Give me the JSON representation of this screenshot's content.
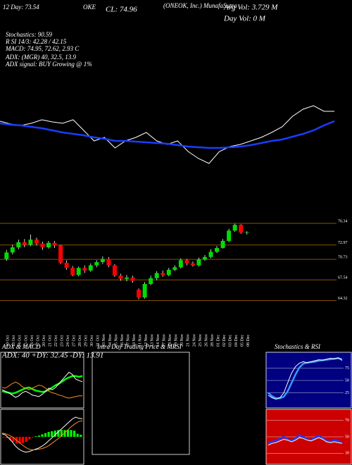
{
  "header": {
    "company": "(ONEOK, Inc.) MunafaSutra",
    "symbol": "OKE",
    "close": "CL: 74.96",
    "avg_vol": "Avg Vol: 3.729 M",
    "day_vol": "Day Vol: 0 M",
    "day_ema": "12 Day: 73.54",
    "stochastics": "Stochastics: 90.59",
    "rsi": "R SI 14/3: 42.28 / 42.15",
    "macd": "MACD: 74.95, 72.62, 2.93 C",
    "adx": "ADX: (MGR) 40, 32.5, 13.9",
    "adx_signal": "ADX signal: BUY Growing @ 1%"
  },
  "panels": {
    "adx_title": "ADX & MACD",
    "adx_values": "ADX: 40 +DY: 32.45 -DY: 13.91",
    "intraday_title": "Intra Day Trading Price & MRSI",
    "stoch_title": "Stochastics & RSI"
  },
  "chart_data": [
    {
      "type": "candlestick",
      "categories": [
        "10 Oct",
        "13 Oct",
        "14 Oct",
        "15 Oct",
        "16 Oct",
        "17 Oct",
        "20 Oct",
        "21 Oct",
        "22 Oct",
        "23 Oct",
        "24 Oct",
        "27 Oct",
        "28 Oct",
        "29 Oct",
        "30 Oct",
        "31 Oct",
        "03 Nov",
        "04 Nov",
        "05 Nov",
        "06 Nov",
        "07 Nov",
        "10 Nov",
        "11 Nov",
        "12 Nov",
        "13 Nov",
        "14 Nov",
        "17 Nov",
        "18 Nov",
        "19 Nov",
        "20 Nov",
        "21 Nov",
        "24 Nov",
        "25 Nov",
        "26 Nov",
        "28 Nov",
        "01 Dec",
        "02 Dec",
        "03 Dec",
        "04 Dec",
        "05 Dec",
        "08 Dec"
      ],
      "open": [
        70.8,
        71.8,
        72.6,
        73.4,
        73.0,
        73.8,
        73.2,
        72.6,
        73.3,
        72.9,
        70.2,
        69.4,
        68.3,
        69.4,
        69.0,
        69.8,
        70.3,
        70.8,
        69.8,
        68.2,
        67.7,
        67.9,
        66.0,
        64.8,
        66.9,
        67.8,
        68.6,
        68.3,
        69.1,
        69.5,
        70.6,
        70.1,
        69.8,
        70.7,
        71.1,
        71.9,
        72.5,
        73.6,
        75.2,
        76.1,
        74.9
      ],
      "high": [
        72.2,
        73.0,
        73.8,
        73.9,
        74.6,
        74.1,
        73.5,
        73.6,
        73.6,
        73.0,
        70.6,
        69.7,
        69.6,
        69.8,
        70.1,
        70.6,
        71.2,
        71.1,
        70.0,
        68.5,
        68.3,
        68.2,
        66.2,
        67.2,
        68.2,
        68.9,
        69.0,
        69.4,
        69.8,
        70.9,
        70.8,
        70.4,
        71.0,
        71.4,
        72.3,
        72.8,
        73.9,
        75.5,
        76.3,
        76.2,
        75.1
      ],
      "low": [
        70.5,
        71.5,
        72.3,
        72.6,
        72.8,
        72.9,
        72.2,
        72.4,
        72.5,
        70.0,
        69.1,
        68.1,
        68.1,
        68.6,
        68.8,
        69.5,
        70.0,
        69.5,
        68.0,
        67.4,
        67.3,
        67.1,
        64.5,
        64.6,
        66.7,
        67.5,
        68.0,
        68.1,
        68.9,
        69.3,
        69.8,
        69.6,
        69.6,
        70.5,
        70.9,
        71.7,
        72.4,
        73.4,
        75.0,
        74.7,
        74.6
      ],
      "close": [
        71.8,
        72.6,
        73.4,
        73.0,
        73.8,
        73.2,
        72.6,
        73.3,
        72.9,
        70.2,
        69.4,
        68.3,
        69.4,
        69.0,
        69.8,
        70.3,
        70.8,
        69.8,
        68.2,
        67.7,
        67.9,
        67.4,
        64.8,
        66.9,
        67.8,
        68.6,
        68.3,
        69.1,
        69.5,
        70.6,
        70.1,
        69.8,
        70.7,
        71.1,
        71.9,
        72.5,
        73.6,
        75.2,
        76.1,
        74.9,
        74.96
      ],
      "up_color": "#00dd00",
      "down_color": "#ff0000",
      "ylim": [
        62.3,
        78.2
      ],
      "yticks": [
        64.32,
        67.54,
        70.73,
        72.97,
        76.34
      ],
      "grid_color": "#8a5200"
    },
    {
      "type": "line",
      "ylim": [
        10,
        100
      ],
      "series": [
        {
          "color": "#ffffff",
          "width": 1,
          "values": [
            78,
            74,
            72,
            75,
            80,
            77,
            75,
            80,
            65,
            50,
            55,
            40,
            50,
            55,
            62,
            50,
            45,
            50,
            35,
            25,
            18,
            35,
            42,
            45,
            50,
            55,
            62,
            70,
            85,
            95,
            100,
            92,
            92
          ]
        },
        {
          "color": "#1a3cff",
          "width": 2.5,
          "values": [
            75,
            73,
            72,
            70,
            68,
            65,
            62,
            60,
            58,
            55,
            53,
            50,
            50,
            49,
            48,
            47,
            46,
            44,
            42,
            41,
            40,
            40,
            41,
            42,
            44,
            47,
            50,
            52,
            56,
            60,
            65,
            72,
            78
          ]
        }
      ]
    },
    {
      "type": "line",
      "ylim": [
        0,
        60
      ],
      "series": [
        {
          "color": "#00ff00",
          "width": 2.5,
          "values": [
            20,
            19,
            18,
            17,
            18,
            20,
            22,
            24,
            25,
            23,
            21,
            20,
            19,
            20,
            22,
            25,
            28,
            30,
            33,
            36,
            38,
            40,
            40,
            39,
            40
          ]
        },
        {
          "color": "#ffffff",
          "width": 1,
          "values": [
            22,
            20,
            18,
            15,
            12,
            14,
            18,
            20,
            18,
            15,
            14,
            13,
            16,
            20,
            24,
            22,
            25,
            30,
            35,
            40,
            45,
            42,
            36,
            34,
            32.45
          ]
        },
        {
          "color": "#ff8c1a",
          "width": 1,
          "values": [
            25,
            24,
            27,
            30,
            32,
            30,
            26,
            24,
            22,
            24,
            26,
            28,
            27,
            24,
            20,
            18,
            17,
            15,
            14,
            12,
            11,
            12,
            13,
            14,
            13.91
          ]
        }
      ]
    },
    {
      "type": "line",
      "ylim": [
        -4,
        4
      ],
      "series": [
        {
          "style": "bar",
          "color": "#00ff00",
          "negative_color": "#ff0000",
          "values": [
            -0.1,
            -0.2,
            -0.5,
            -0.8,
            -1.1,
            -1.1,
            -1,
            -0.8,
            -0.4,
            -0.1,
            0.1,
            0.2,
            0.4,
            0.6,
            0.8,
            0.9,
            1,
            1.1,
            1.1,
            1.1,
            1.1,
            1.1,
            1,
            0.5,
            0.33
          ]
        },
        {
          "color": "#ffffff",
          "width": 1,
          "values": [
            0.5,
            0.3,
            -0.2,
            -0.8,
            -1.5,
            -2,
            -2.3,
            -2.5,
            -2.4,
            -2.2,
            -2,
            -1.8,
            -1.5,
            -1.1,
            -0.6,
            -0.1,
            0.4,
            0.9,
            1.4,
            1.9,
            2.4,
            2.9,
            3.2,
            3.0,
            2.93
          ]
        },
        {
          "color": "#ff8c1a",
          "width": 1,
          "values": [
            0.6,
            0.5,
            0.3,
            0,
            -0.4,
            -0.9,
            -1.3,
            -1.7,
            -2,
            -2.1,
            -2.1,
            -2,
            -1.9,
            -1.7,
            -1.4,
            -1,
            -0.6,
            -0.2,
            0.3,
            0.8,
            1.3,
            1.8,
            2.2,
            2.5,
            2.6
          ]
        }
      ]
    },
    {
      "type": "line",
      "ylim": [
        0,
        100
      ],
      "yticks": [
        25,
        50,
        75
      ],
      "series": [
        {
          "color": "#3399ff",
          "width": 2.5,
          "values": [
            25,
            18,
            14,
            14,
            17,
            28,
            45,
            62,
            76,
            84,
            86,
            87,
            88,
            90,
            91,
            92,
            93,
            94,
            95,
            93
          ]
        },
        {
          "color": "#ffffff",
          "width": 1,
          "values": [
            20,
            15,
            12,
            15,
            25,
            45,
            65,
            78,
            85,
            88,
            86,
            88,
            90,
            92,
            91,
            93,
            95,
            94,
            96,
            90.59
          ]
        }
      ]
    },
    {
      "type": "line",
      "ylim": [
        20,
        80
      ],
      "yticks": [
        30,
        50,
        70
      ],
      "series": [
        {
          "color": "#1a3cff",
          "width": 2.5,
          "values": [
            42,
            44,
            45,
            48,
            50,
            47,
            45,
            48,
            52,
            50,
            47,
            46,
            49,
            51,
            48,
            45,
            44,
            46,
            45,
            42.28
          ]
        },
        {
          "color": "#ffffff",
          "width": 1,
          "values": [
            40,
            42,
            43,
            45,
            47,
            46,
            44,
            46,
            49,
            48,
            46,
            45,
            47,
            49,
            47,
            44,
            43,
            44,
            43,
            42.15
          ]
        }
      ]
    }
  ]
}
